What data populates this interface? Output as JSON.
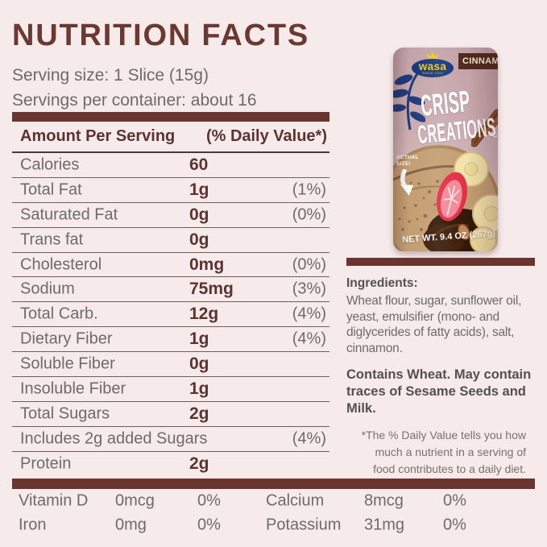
{
  "colors": {
    "background": "#f6eaea",
    "accent": "#6a352e",
    "text_gray": "#6f6a69",
    "value_brown": "#5b332f"
  },
  "header": {
    "title": "NUTRITION FACTS",
    "serving_size": "Serving size: 1 Slice (15g)",
    "servings_per_container": "Servings per container: about 16"
  },
  "table": {
    "col_amount": "Amount Per Serving",
    "col_dv": "(% Daily Value*)",
    "rows": [
      {
        "label": "Calories",
        "value": "60",
        "dv": ""
      },
      {
        "label": "Total Fat",
        "value": "1g",
        "dv": "(1%)"
      },
      {
        "label": "Saturated Fat",
        "value": "0g",
        "dv": "(0%)"
      },
      {
        "label": "Trans fat",
        "value": "0g",
        "dv": ""
      },
      {
        "label": "Cholesterol",
        "value": "0mg",
        "dv": "(0%)"
      },
      {
        "label": "Sodium",
        "value": "75mg",
        "dv": "(3%)"
      },
      {
        "label": "Total Carb.",
        "value": "12g",
        "dv": "(4%)"
      },
      {
        "label": "Dietary Fiber",
        "value": "1g",
        "dv": "(4%)"
      },
      {
        "label": "Soluble Fiber",
        "value": "0g",
        "dv": ""
      },
      {
        "label": "Insoluble Fiber",
        "value": "1g",
        "dv": ""
      },
      {
        "label": "Total Sugars",
        "value": "2g",
        "dv": ""
      },
      {
        "label": "Includes 2g added Sugars",
        "value": "",
        "dv": "(4%)"
      },
      {
        "label": "Protein",
        "value": "2g",
        "dv": ""
      }
    ]
  },
  "micros": {
    "rows": [
      {
        "l1": "Vitamin D",
        "v1": "0mcg",
        "p1": "0%",
        "l2": "Calcium",
        "v2": "8mcg",
        "p2": "0%"
      },
      {
        "l1": "Iron",
        "v1": "0mg",
        "p1": "0%",
        "l2": "Potassium",
        "v2": "31mg",
        "p2": "0%"
      }
    ]
  },
  "product": {
    "brand": "wasa",
    "brand_sub": "SINCE 1919",
    "flavor_tag": "CINNAM",
    "name_line1": "CRISP",
    "name_line2": "CREATIONS",
    "name_edge": "L C",
    "actual_size_line1": "ACTUAL",
    "actual_size_line2": "SIZE!",
    "net_weight": "NET WT. 9.4 OZ (267g)"
  },
  "ingredients": {
    "heading": "Ingredients:",
    "body": "Wheat flour, sugar, sunflower oil, yeast, emulsifier (mono- and diglycerides of fatty acids), salt, cinnamon.",
    "allergen": "Contains Wheat. May contain traces of Sesame Seeds and Milk."
  },
  "footnote": {
    "lines": [
      "*The % Daily Value tells you how",
      "much a nutrient in a serving of",
      "food contributes to a daily diet."
    ]
  }
}
